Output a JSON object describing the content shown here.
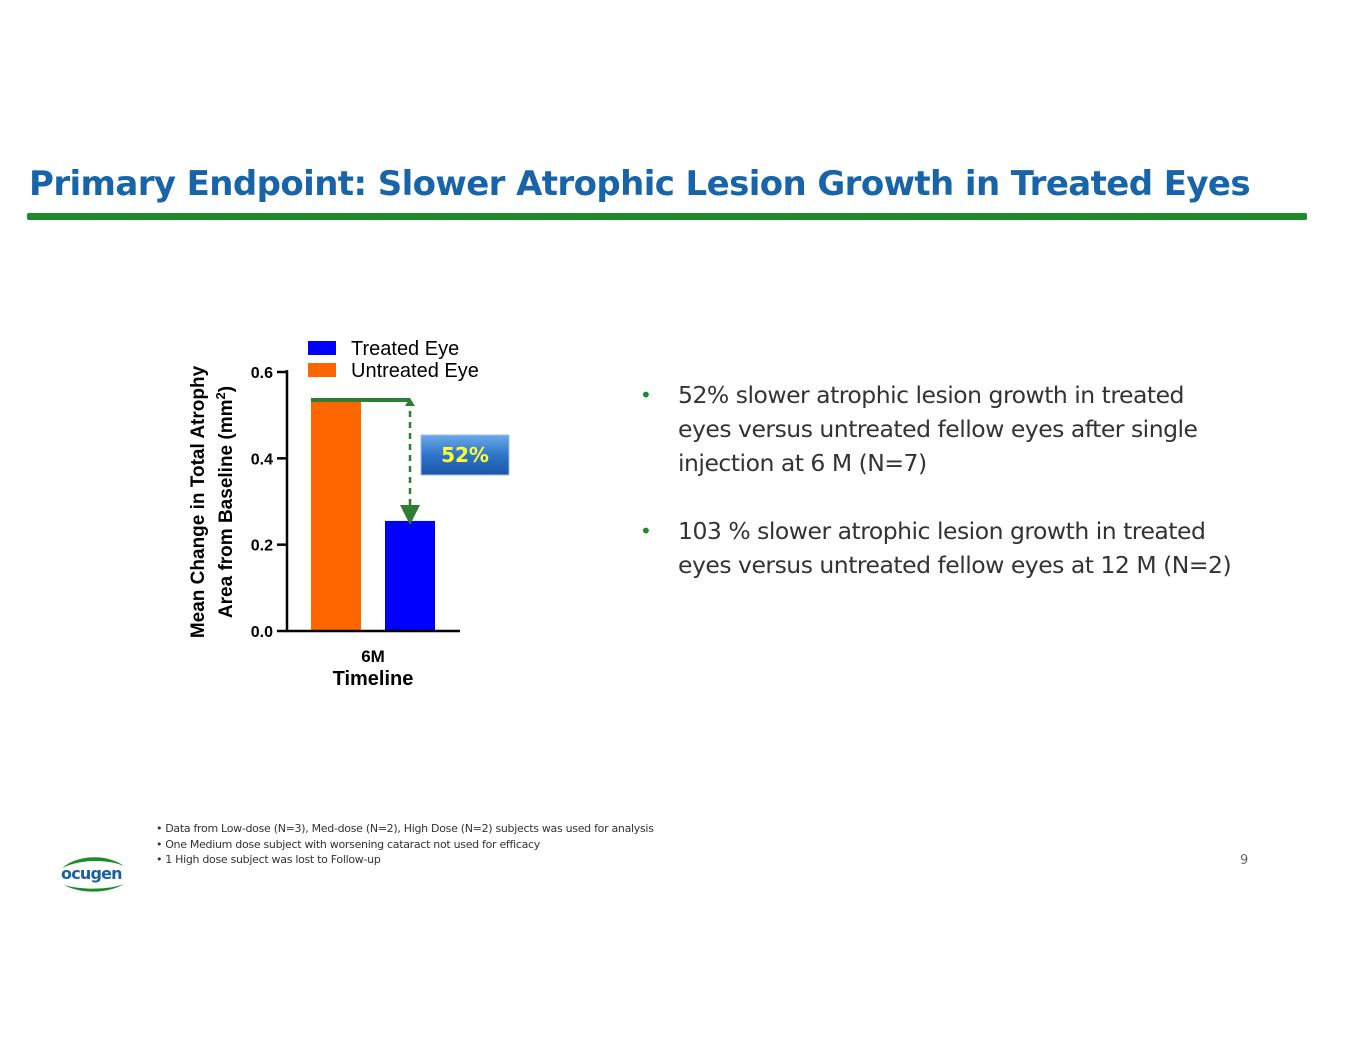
{
  "slide": {
    "title": "Primary Endpoint: Slower Atrophic Lesion Growth in Treated Eyes",
    "page_number": "9",
    "logo_text": "ocugen",
    "colors": {
      "title": "#1864a8",
      "accent_green": "#1f8a2c"
    }
  },
  "bullets": [
    "52% slower atrophic lesion growth in treated eyes versus untreated fellow eyes after single injection at 6 M (N=7)",
    "103 % slower atrophic lesion growth in treated eyes versus untreated fellow eyes at 12 M (N=2)"
  ],
  "footnotes": [
    "Data from Low-dose (N=3), Med-dose (N=2), High Dose (N=2) subjects was used for analysis",
    "One Medium dose subject with worsening cataract not used for efficacy",
    "1 High dose subject was lost to Follow-up"
  ],
  "chart_data": {
    "type": "bar",
    "categories": [
      "6M"
    ],
    "series": [
      {
        "name": "Untreated Eye",
        "values": [
          0.535
        ],
        "color": "#ff6600"
      },
      {
        "name": "Treated Eye",
        "values": [
          0.255
        ],
        "color": "#0000ff"
      }
    ],
    "legend_order": [
      "Treated Eye",
      "Untreated Eye"
    ],
    "xlabel": "Timeline",
    "ylabel_line1": "Mean Change in Total Atrophy",
    "ylabel_line2": "Area from Baseline (mm",
    "ylabel_sup": "2",
    "ylabel_close": ")",
    "ylim": [
      0,
      0.6
    ],
    "yticks": [
      "0.0",
      "0.2",
      "0.4",
      "0.6"
    ],
    "annotation": "52%",
    "legend_position": "top",
    "grid": false
  }
}
